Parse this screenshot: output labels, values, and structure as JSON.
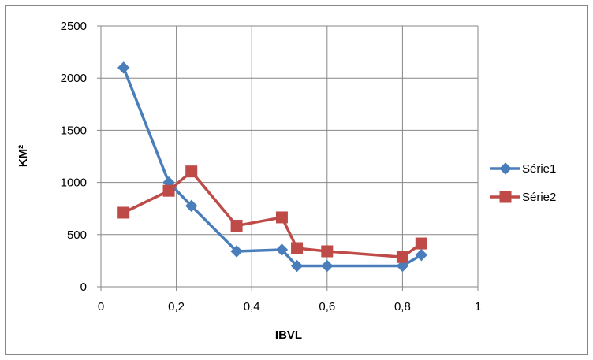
{
  "chart_data": {
    "type": "line",
    "xlabel": "IBVL",
    "ylabel": "KM²",
    "xlim": [
      0,
      1
    ],
    "ylim": [
      0,
      2500
    ],
    "x_ticks": [
      "0",
      "0,2",
      "0,4",
      "0,6",
      "0,8",
      "1"
    ],
    "y_ticks": [
      "0",
      "500",
      "1000",
      "1500",
      "2000",
      "2500"
    ],
    "grid": true,
    "legend_position": "right",
    "series": [
      {
        "name": "Série1",
        "color": "#4a7ebb",
        "marker": "diamond",
        "x": [
          0.06,
          0.18,
          0.24,
          0.36,
          0.48,
          0.52,
          0.6,
          0.8,
          0.85
        ],
        "y": [
          2100,
          1000,
          775,
          340,
          355,
          200,
          200,
          200,
          305
        ]
      },
      {
        "name": "Série2",
        "color": "#be4b48",
        "marker": "square",
        "x": [
          0.06,
          0.18,
          0.24,
          0.36,
          0.48,
          0.52,
          0.6,
          0.8,
          0.85
        ],
        "y": [
          710,
          920,
          1105,
          585,
          665,
          370,
          340,
          285,
          415
        ]
      }
    ]
  }
}
